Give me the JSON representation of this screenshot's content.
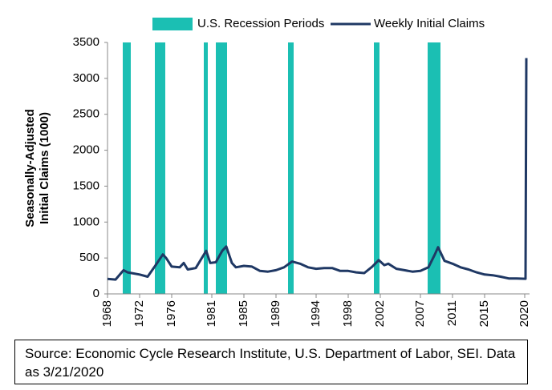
{
  "chart_data": {
    "type": "line",
    "legend": "top",
    "ylabel": [
      "Seasonally-Adjusted",
      "Initial Claims (1000)"
    ],
    "xlim": [
      1968,
      2020.6
    ],
    "xticks": [
      1968,
      1972,
      1976,
      1981,
      1985,
      1989,
      1994,
      1998,
      2002,
      2007,
      2011,
      2015,
      2020
    ],
    "ylim": [
      0,
      3500
    ],
    "yticks": [
      0,
      500,
      1000,
      1500,
      2000,
      2500,
      3000,
      3500
    ],
    "recessions": {
      "name": "U.S. Recession Periods",
      "color": "#1bbfb3",
      "periods": [
        [
          1969.9,
          1970.9
        ],
        [
          1973.9,
          1975.2
        ],
        [
          1980.0,
          1980.5
        ],
        [
          1981.5,
          1982.9
        ],
        [
          1990.5,
          1991.2
        ],
        [
          2001.2,
          2001.9
        ],
        [
          2007.9,
          2009.5
        ]
      ]
    },
    "x": [
      1968,
      1969,
      1970,
      1970.5,
      1971,
      1972,
      1973,
      1974,
      1974.9,
      1975.3,
      1976,
      1977,
      1977.5,
      1978,
      1979,
      1980.3,
      1980.8,
      1981.5,
      1982.3,
      1982.8,
      1983.5,
      1984,
      1985,
      1986,
      1987,
      1988,
      1989,
      1990,
      1991,
      1992,
      1993,
      1994,
      1995,
      1996,
      1997,
      1998,
      1999,
      2000,
      2001,
      2001.8,
      2002.5,
      2003,
      2004,
      2005,
      2006,
      2007,
      2008,
      2008.8,
      2009.2,
      2010,
      2011,
      2012,
      2013,
      2014,
      2015,
      2016,
      2017,
      2018,
      2019,
      2020.1,
      2020.2
    ],
    "series": [
      {
        "name": "Weekly Initial Claims",
        "color": "#1f3864",
        "values": [
          210,
          200,
          330,
          300,
          290,
          270,
          240,
          400,
          550,
          500,
          380,
          370,
          430,
          340,
          360,
          600,
          430,
          440,
          600,
          660,
          430,
          370,
          390,
          380,
          320,
          310,
          330,
          370,
          450,
          420,
          370,
          350,
          360,
          360,
          320,
          320,
          300,
          290,
          380,
          470,
          400,
          420,
          350,
          330,
          310,
          320,
          370,
          550,
          650,
          460,
          420,
          370,
          340,
          300,
          270,
          260,
          240,
          215,
          215,
          211,
          3283
        ]
      }
    ],
    "source": "Source: Economic Cycle Research Institute, U.S. Department of Labor, SEI. Data as 3/21/2020"
  }
}
